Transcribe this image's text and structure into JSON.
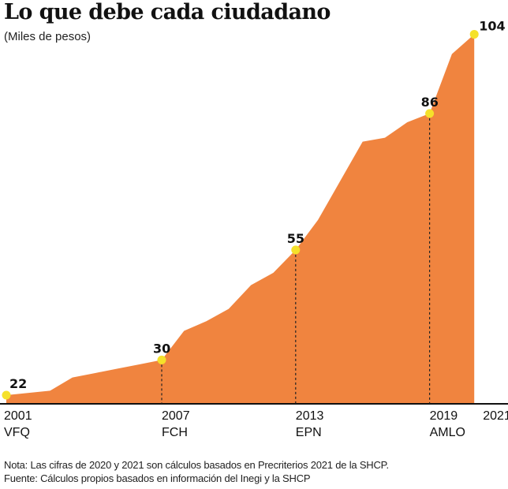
{
  "chart_data": {
    "type": "area",
    "title": "Lo que debe cada ciudadano",
    "subtitle": "(Miles de pesos)",
    "xlabel": "",
    "ylabel": "",
    "x": [
      2001,
      2002,
      2003,
      2004,
      2005,
      2006,
      2007,
      2008,
      2009,
      2010,
      2011,
      2012,
      2013,
      2014,
      2015,
      2016,
      2017,
      2018,
      2019,
      2020,
      2021
    ],
    "values": [
      22,
      23,
      26,
      27,
      28,
      29,
      30,
      36.6,
      38.8,
      41.6,
      47,
      49.8,
      55,
      61.8,
      70.7,
      79.6,
      80.5,
      84,
      86,
      99.5,
      104
    ],
    "ylim": [
      20,
      104
    ],
    "grid": false,
    "color": "#F0843F",
    "marker_color": "#F5E12A",
    "highlighted": [
      {
        "year": 2001,
        "value_label": "22",
        "tick_label": "2001",
        "sub_label": "VFQ"
      },
      {
        "year": 2007,
        "value_label": "30",
        "tick_label": "2007",
        "sub_label": "FCH"
      },
      {
        "year": 2013,
        "value_label": "55",
        "tick_label": "2013",
        "sub_label": "EPN"
      },
      {
        "year": 2019,
        "value_label": "86",
        "tick_label": "2019",
        "sub_label": "AMLO"
      },
      {
        "year": 2021,
        "value_label": "104",
        "tick_label": "2021",
        "sub_label": ""
      }
    ]
  },
  "notes": {
    "nota": "Nota: Las cifras de 2020 y 2021 son cálculos basados en Precriterios 2021 de la SHCP.",
    "fuente": "Fuente: Cálculos propios basados en información del Inegi y la SHCP"
  }
}
